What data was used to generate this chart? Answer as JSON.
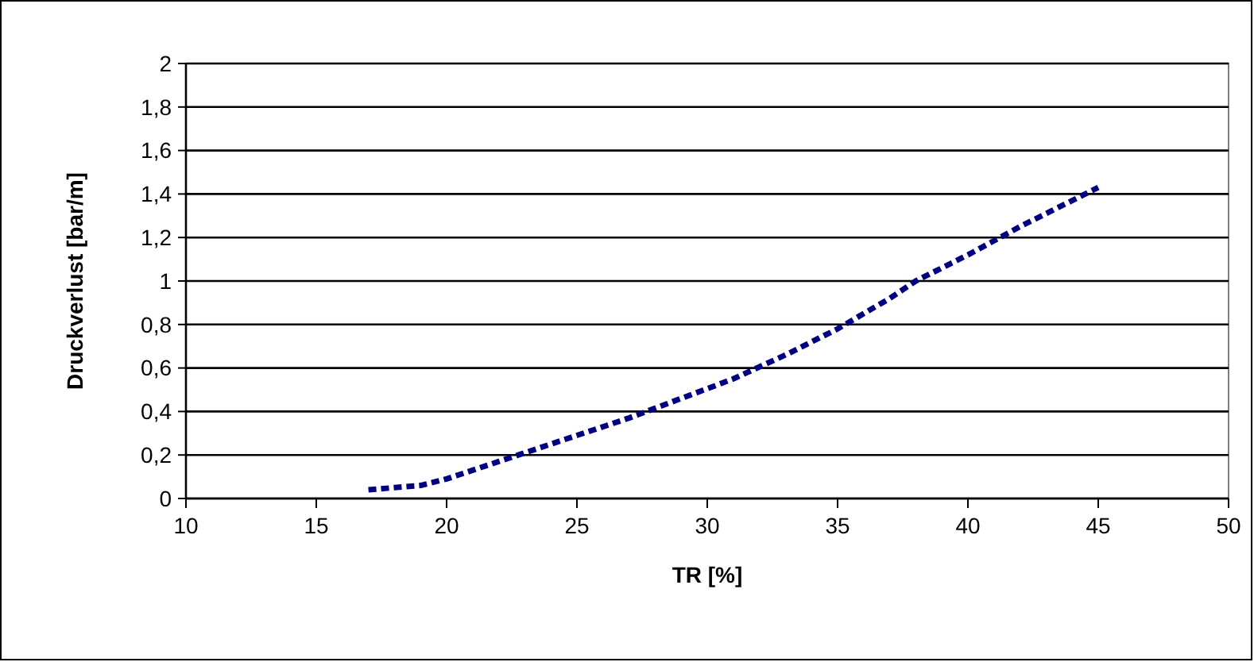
{
  "chart_data": {
    "type": "line",
    "xlabel": "TR [%]",
    "ylabel": "Druckverlust [bar/m]",
    "xlim": [
      10,
      50
    ],
    "xticks": [
      10,
      15,
      20,
      25,
      30,
      35,
      40,
      45,
      50
    ],
    "ylim": [
      0,
      2
    ],
    "yticks": [
      0,
      {
        "value": 0.2,
        "label": "0,2"
      },
      {
        "value": 0.4,
        "label": "0,4"
      },
      {
        "value": 0.6,
        "label": "0,6"
      },
      {
        "value": 0.8,
        "label": "0,8"
      },
      1,
      {
        "value": 1.2,
        "label": "1,2"
      },
      {
        "value": 1.4,
        "label": "1,4"
      },
      {
        "value": 1.6,
        "label": "1,6"
      },
      {
        "value": 1.8,
        "label": "1,8"
      },
      2
    ],
    "grid": "y",
    "line_style": "dashed",
    "marker": "none",
    "series": [
      {
        "color": "#000080",
        "x": [
          17,
          18,
          19,
          20,
          21,
          22,
          23,
          25,
          27,
          29,
          31,
          33,
          35,
          37,
          38,
          40,
          42,
          45
        ],
        "values": [
          0.04,
          0.05,
          0.06,
          0.09,
          0.13,
          0.17,
          0.21,
          0.29,
          0.37,
          0.46,
          0.55,
          0.66,
          0.78,
          0.92,
          1.0,
          1.12,
          1.25,
          1.43
        ]
      }
    ]
  }
}
